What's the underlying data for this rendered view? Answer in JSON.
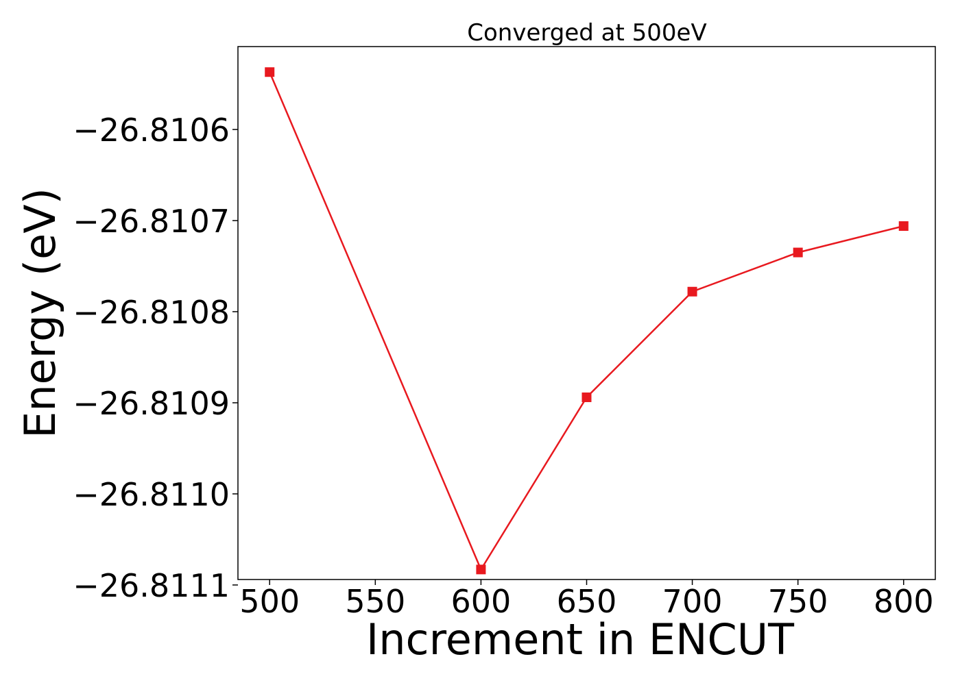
{
  "chart_data": {
    "type": "line",
    "title": "Converged at 500eV",
    "xlabel": "Increment in ENCUT",
    "ylabel": "Energy (eV)",
    "x": [
      500,
      600,
      650,
      700,
      750,
      800
    ],
    "series": [
      {
        "values": [
          -26.810537,
          -26.811083,
          -26.810894,
          -26.810778,
          -26.810735,
          -26.810706
        ],
        "color": "#e8191f",
        "marker": "square"
      }
    ],
    "xlim": [
      485,
      815
    ],
    "ylim": [
      -26.811094,
      -26.810509
    ],
    "xticks": [
      500,
      550,
      600,
      650,
      700,
      750,
      800
    ],
    "xtick_labels": [
      "500",
      "550",
      "600",
      "650",
      "700",
      "750",
      "800"
    ],
    "yticks": [
      -26.8111,
      -26.811,
      -26.8109,
      -26.8108,
      -26.8107,
      -26.8106
    ],
    "ytick_labels": [
      "−26.8111",
      "−26.8110",
      "−26.8109",
      "−26.8108",
      "−26.8107",
      "−26.8106"
    ],
    "grid": false,
    "legend": "none"
  }
}
